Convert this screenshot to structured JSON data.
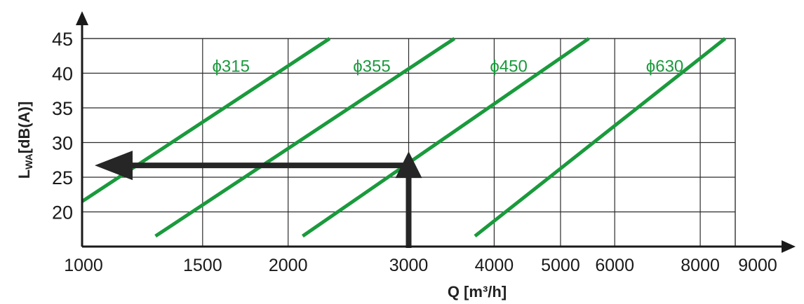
{
  "chart_data": {
    "type": "line",
    "xscale": "log",
    "x_ticks": [
      1000,
      1500,
      2000,
      3000,
      4000,
      5000,
      6000,
      8000,
      9000
    ],
    "x_tick_labels": [
      "1000",
      "1500",
      "2000",
      "3000",
      "4000",
      "5000",
      "6000",
      "8000",
      "9000"
    ],
    "y_ticks": [
      20,
      25,
      30,
      35,
      40,
      45
    ],
    "y_tick_labels": [
      "20",
      "25",
      "30",
      "35",
      "40",
      "45"
    ],
    "xlabel": "Q [m³/h]",
    "ylabel_main": "L",
    "ylabel_sub": "WA",
    "ylabel_rest": "[dB(A)]",
    "xlim": [
      1000,
      9000
    ],
    "ylim": [
      15,
      45
    ],
    "grid": true,
    "series": [
      {
        "name": "ϕ315",
        "x": [
          1000,
          2300
        ],
        "y": [
          21.5,
          45
        ],
        "label_x": 1650,
        "label_y": 41
      },
      {
        "name": "ϕ355",
        "x": [
          1280,
          3500
        ],
        "y": [
          16.5,
          45
        ],
        "label_x": 2650,
        "label_y": 41
      },
      {
        "name": "ϕ450",
        "x": [
          2100,
          5500
        ],
        "y": [
          16.5,
          45
        ],
        "label_x": 4200,
        "label_y": 41
      },
      {
        "name": "ϕ630",
        "x": [
          3750,
          8700
        ],
        "y": [
          16.5,
          45
        ],
        "label_x": 7100,
        "label_y": 41
      }
    ],
    "annotations": {
      "guide_up": {
        "x": 3000,
        "from_y": 15,
        "to_y": 26.5
      },
      "guide_left": {
        "y": 26.7,
        "from_x": 3000,
        "to_x": 1000
      }
    },
    "colors": {
      "series": "#1a9a3c",
      "grid": "#2b2b2b",
      "axis": "#1a1a1a",
      "arrow": "#262626",
      "top_text": "#2a3c9e"
    }
  }
}
